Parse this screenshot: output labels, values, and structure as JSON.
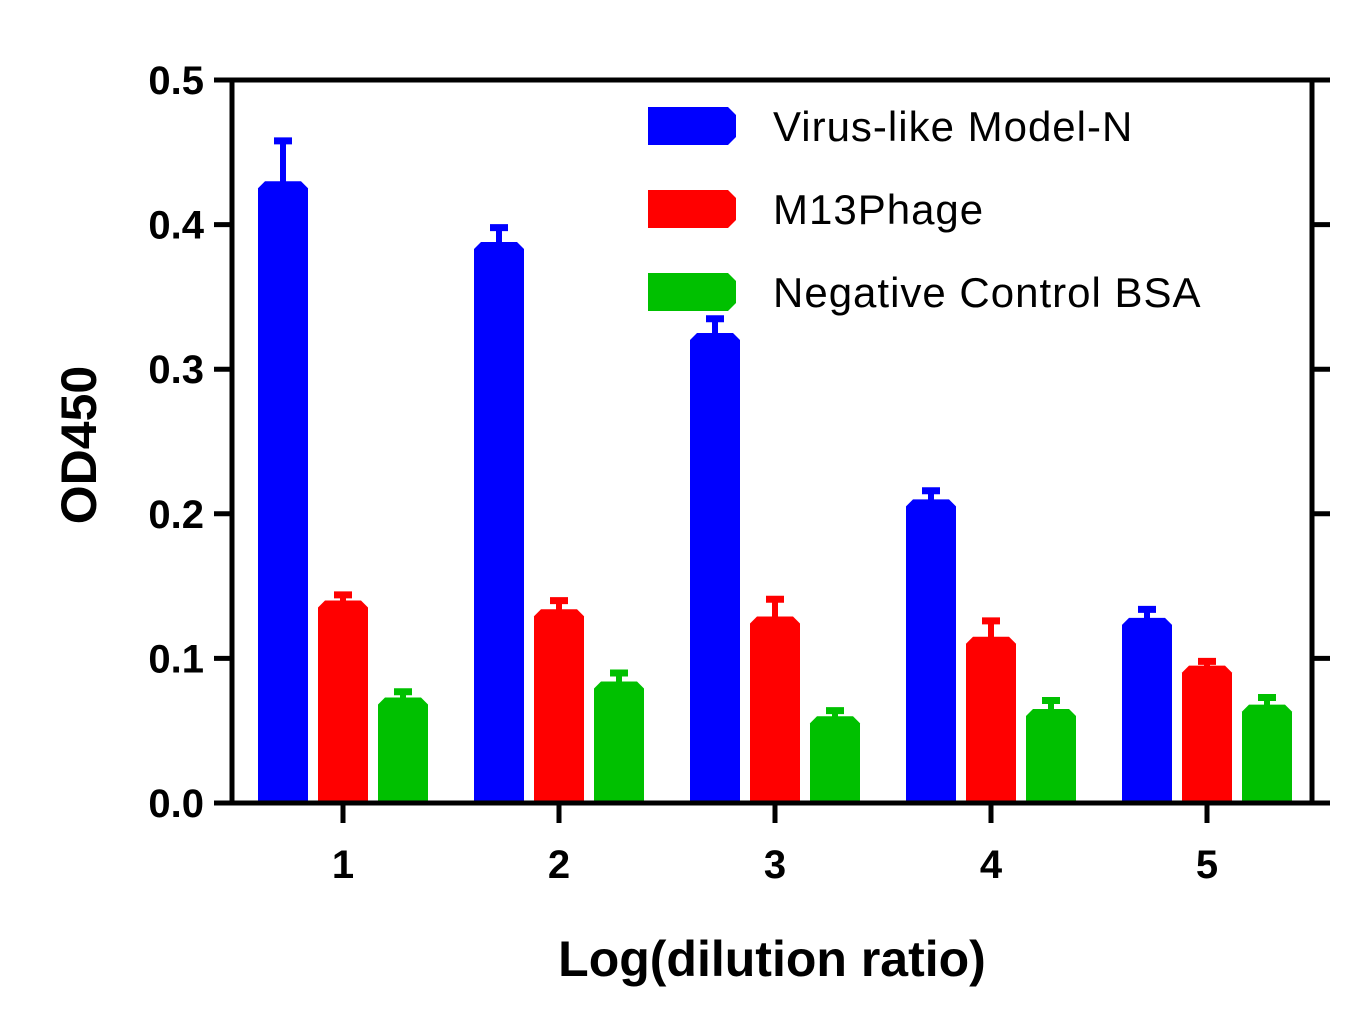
{
  "chart_data": {
    "type": "bar",
    "title": "",
    "xlabel": "Log(dilution ratio)",
    "ylabel": "OD450",
    "ylim": [
      0,
      0.5
    ],
    "yticks": [
      "0.0",
      "0.1",
      "0.2",
      "0.3",
      "0.4",
      "0.5"
    ],
    "categories": [
      "1",
      "2",
      "3",
      "4",
      "5"
    ],
    "legend_position": "top-right",
    "series": [
      {
        "name": "Virus-like Model-N",
        "color": "#0000ff",
        "values": [
          0.43,
          0.388,
          0.325,
          0.21,
          0.128
        ],
        "errors": [
          0.03,
          0.012,
          0.012,
          0.008,
          0.008
        ]
      },
      {
        "name": "M13Phage",
        "color": "#ff0000",
        "values": [
          0.14,
          0.134,
          0.129,
          0.115,
          0.095
        ],
        "errors": [
          0.006,
          0.008,
          0.014,
          0.013,
          0.005
        ]
      },
      {
        "name": "Negative Control BSA",
        "color": "#00c000",
        "values": [
          0.073,
          0.084,
          0.06,
          0.065,
          0.068
        ],
        "errors": [
          0.006,
          0.008,
          0.006,
          0.008,
          0.007
        ]
      }
    ]
  }
}
